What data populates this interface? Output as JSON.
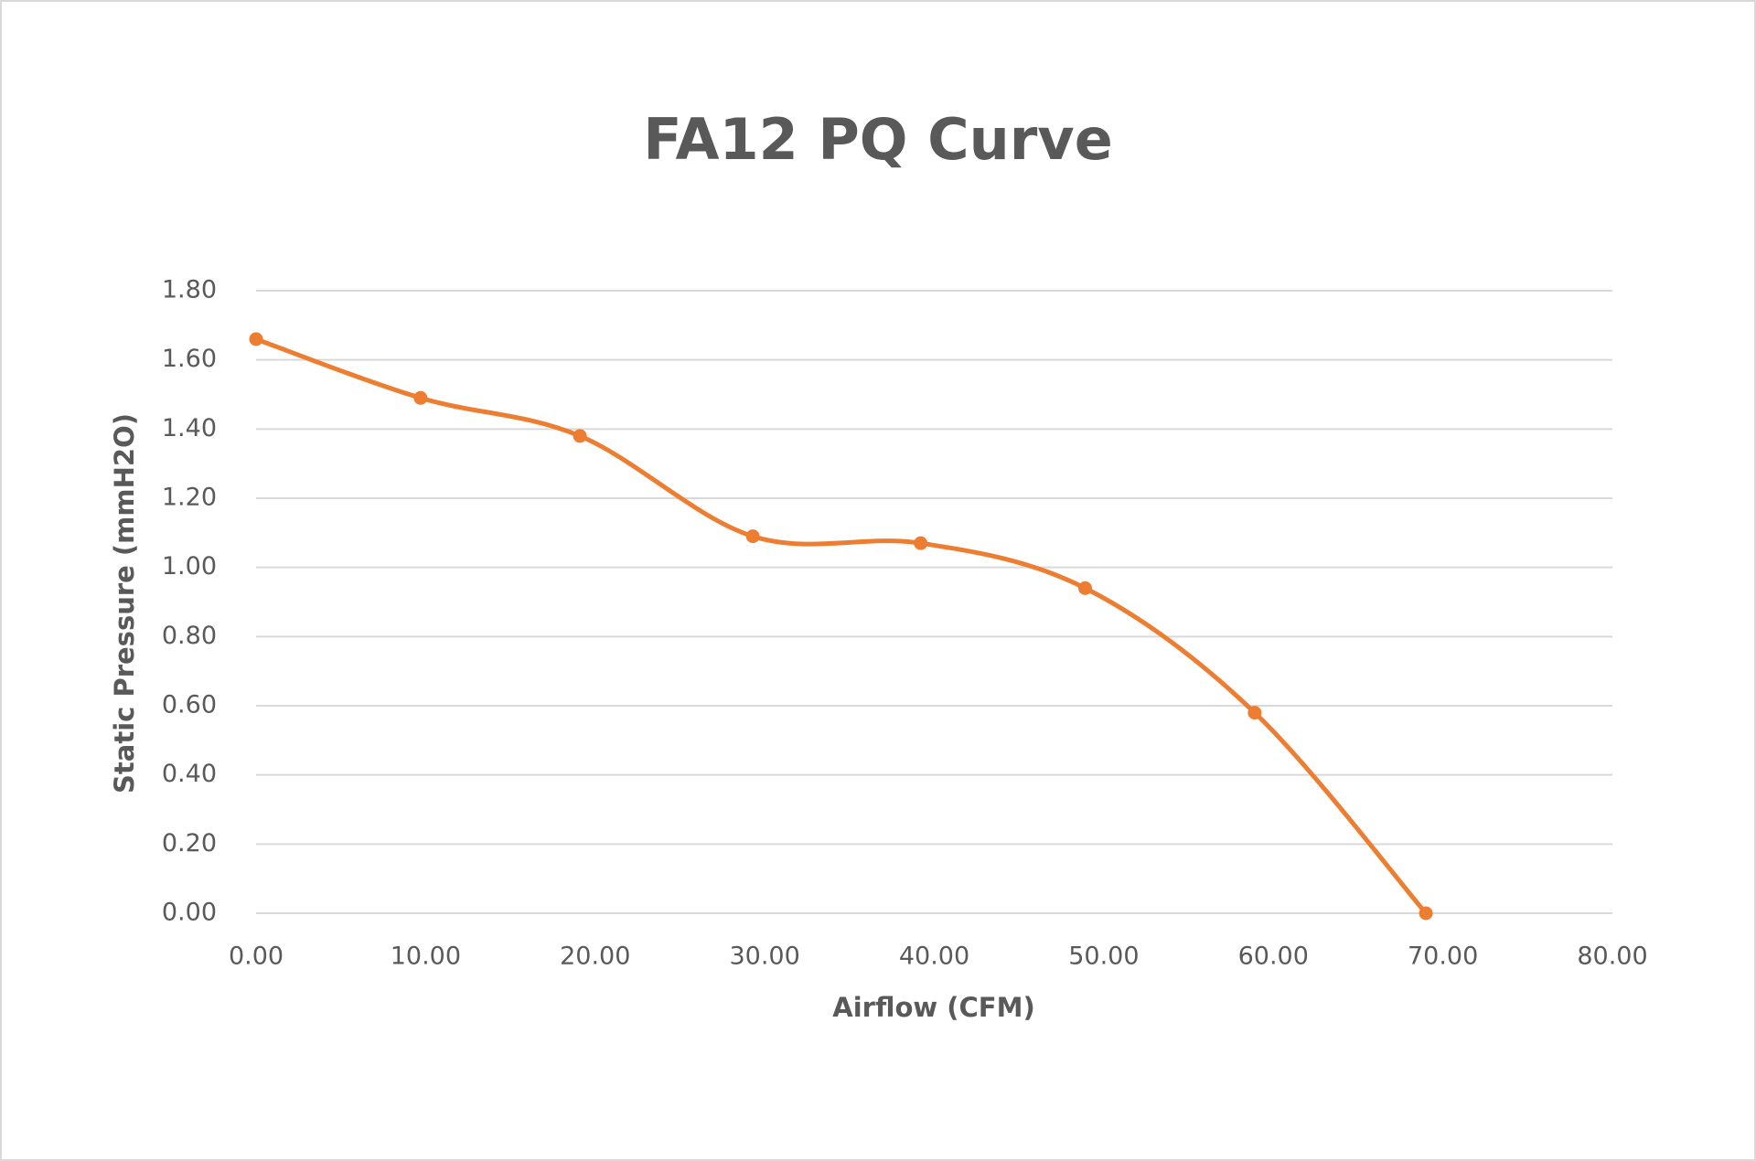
{
  "chart_data": {
    "type": "line",
    "title": "FA12 PQ Curve",
    "x_label": "Airflow (CFM)",
    "y_label": "Static Pressure (mmH2O)",
    "x": [
      0,
      9.7,
      19.1,
      29.3,
      39.2,
      48.9,
      58.9,
      69.0
    ],
    "values": [
      1.66,
      1.49,
      1.38,
      1.09,
      1.07,
      0.94,
      0.58,
      0
    ],
    "color": "#ed7d31",
    "smooth": true,
    "markers": true,
    "grid": true,
    "xlim": [
      0,
      80
    ],
    "xticks": [
      {
        "value": 0,
        "label": "0.00"
      },
      {
        "value": 10,
        "label": "10.00"
      },
      {
        "value": 20,
        "label": "20.00"
      },
      {
        "value": 30,
        "label": "30.00"
      },
      {
        "value": 40,
        "label": "40.00"
      },
      {
        "value": 50,
        "label": "50.00"
      },
      {
        "value": 60,
        "label": "60.00"
      },
      {
        "value": 70,
        "label": "70.00"
      },
      {
        "value": 80,
        "label": "80.00"
      }
    ],
    "ylim": [
      0,
      1.8
    ],
    "yticks": [
      {
        "value": 0,
        "label": "0.00"
      },
      {
        "value": 0.2,
        "label": "0.20"
      },
      {
        "value": 0.4,
        "label": "0.40"
      },
      {
        "value": 0.6,
        "label": "0.60"
      },
      {
        "value": 0.8,
        "label": "0.80"
      },
      {
        "value": 1.0,
        "label": "1.00"
      },
      {
        "value": 1.2,
        "label": "1.20"
      },
      {
        "value": 1.4,
        "label": "1.40"
      },
      {
        "value": 1.6,
        "label": "1.60"
      },
      {
        "value": 1.8,
        "label": "1.80"
      }
    ]
  }
}
